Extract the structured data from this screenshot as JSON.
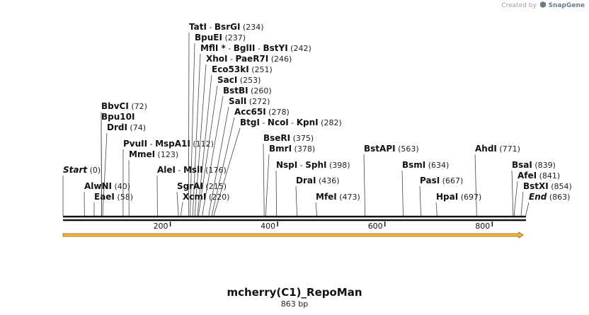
{
  "credit": {
    "prefix": "Created by",
    "brand": "SnapGene"
  },
  "sequence": {
    "name": "mcherry(C1)_RepoMan",
    "length_label": "863 bp",
    "length": 863
  },
  "colors": {
    "backbone": "#111111",
    "feature_fill": "#f5b942",
    "feature_stroke": "#8a5a00",
    "leader": "#444444"
  },
  "ruler": {
    "ticks": [
      200,
      400,
      600,
      800
    ]
  },
  "feature": {
    "start": 1,
    "end": 863,
    "direction": "forward"
  },
  "sites": [
    {
      "row": 0,
      "pos": 0,
      "group": [
        {
          "name": "Start",
          "italic": true
        }
      ],
      "pos_label": "(0)"
    },
    {
      "row": 0,
      "pos": 40,
      "group": [
        {
          "name": "AlwNI"
        }
      ],
      "pos_label": "(40)"
    },
    {
      "row": 1,
      "pos": 58,
      "group": [
        {
          "name": "EaeI"
        }
      ],
      "pos_label": "(58)"
    },
    {
      "row": 0,
      "pos": 72,
      "group": [
        {
          "name": "BbvCI"
        }
      ],
      "pos_label": "(72)"
    },
    {
      "row": 1,
      "pos": 72,
      "group": [
        {
          "name": "Bpu10I"
        }
      ],
      "pos_label": ""
    },
    {
      "row": 2,
      "pos": 74,
      "group": [
        {
          "name": "DrdI"
        }
      ],
      "pos_label": "(74)"
    },
    {
      "row": 0,
      "pos": 112,
      "group": [
        {
          "name": "PvuII"
        },
        {
          "name": "MspA1I"
        }
      ],
      "pos_label": "(112)"
    },
    {
      "row": 1,
      "pos": 123,
      "group": [
        {
          "name": "MmeI"
        }
      ],
      "pos_label": "(123)"
    },
    {
      "row": 0,
      "pos": 176,
      "group": [
        {
          "name": "AleI"
        },
        {
          "name": "MslI"
        }
      ],
      "pos_label": "(176)"
    },
    {
      "row": 0,
      "pos": 215,
      "group": [
        {
          "name": "SgrAI"
        }
      ],
      "pos_label": "(215)"
    },
    {
      "row": 1,
      "pos": 220,
      "group": [
        {
          "name": "XcmI"
        }
      ],
      "pos_label": "(220)"
    },
    {
      "row": 0,
      "pos": 234,
      "group": [
        {
          "name": "TatI"
        },
        {
          "name": "BsrGI"
        }
      ],
      "pos_label": "(234)"
    },
    {
      "row": 1,
      "pos": 237,
      "group": [
        {
          "name": "BpuEI"
        }
      ],
      "pos_label": "(237)"
    },
    {
      "row": 2,
      "pos": 242,
      "group": [
        {
          "name": "MflI *"
        },
        {
          "name": "BglII"
        },
        {
          "name": "BstYI"
        }
      ],
      "pos_label": "(242)"
    },
    {
      "row": 3,
      "pos": 246,
      "group": [
        {
          "name": "XhoI"
        },
        {
          "name": "PaeR7I"
        }
      ],
      "pos_label": "(246)"
    },
    {
      "row": 4,
      "pos": 251,
      "group": [
        {
          "name": "Eco53kI"
        }
      ],
      "pos_label": "(251)"
    },
    {
      "row": 5,
      "pos": 253,
      "group": [
        {
          "name": "SacI"
        }
      ],
      "pos_label": "(253)"
    },
    {
      "row": 6,
      "pos": 260,
      "group": [
        {
          "name": "BstBI"
        }
      ],
      "pos_label": "(260)"
    },
    {
      "row": 7,
      "pos": 272,
      "group": [
        {
          "name": "SalI"
        }
      ],
      "pos_label": "(272)"
    },
    {
      "row": 8,
      "pos": 278,
      "group": [
        {
          "name": "Acc65I"
        }
      ],
      "pos_label": "(278)"
    },
    {
      "row": 9,
      "pos": 282,
      "group": [
        {
          "name": "BtgI"
        },
        {
          "name": "NcoI"
        },
        {
          "name": "KpnI"
        }
      ],
      "pos_label": "(282)"
    },
    {
      "row": 0,
      "pos": 375,
      "group": [
        {
          "name": "BseRI"
        }
      ],
      "pos_label": "(375)"
    },
    {
      "row": 1,
      "pos": 378,
      "group": [
        {
          "name": "BmrI"
        }
      ],
      "pos_label": "(378)"
    },
    {
      "row": 2,
      "pos": 398,
      "group": [
        {
          "name": "NspI"
        },
        {
          "name": "SphI"
        }
      ],
      "pos_label": "(398)"
    },
    {
      "row": 3,
      "pos": 436,
      "group": [
        {
          "name": "DraI"
        }
      ],
      "pos_label": "(436)"
    },
    {
      "row": 4,
      "pos": 473,
      "group": [
        {
          "name": "MfeI"
        }
      ],
      "pos_label": "(473)"
    },
    {
      "row": 0,
      "pos": 563,
      "group": [
        {
          "name": "BstAPI"
        }
      ],
      "pos_label": "(563)"
    },
    {
      "row": 0,
      "pos": 634,
      "group": [
        {
          "name": "BsmI"
        }
      ],
      "pos_label": "(634)"
    },
    {
      "row": 1,
      "pos": 667,
      "group": [
        {
          "name": "PasI"
        }
      ],
      "pos_label": "(667)"
    },
    {
      "row": 2,
      "pos": 697,
      "group": [
        {
          "name": "HpaI"
        }
      ],
      "pos_label": "(697)"
    },
    {
      "row": 0,
      "pos": 771,
      "group": [
        {
          "name": "AhdI"
        }
      ],
      "pos_label": "(771)"
    },
    {
      "row": 0,
      "pos": 839,
      "group": [
        {
          "name": "BsaI"
        }
      ],
      "pos_label": "(839)"
    },
    {
      "row": 1,
      "pos": 841,
      "group": [
        {
          "name": "AfeI"
        }
      ],
      "pos_label": "(841)"
    },
    {
      "row": 2,
      "pos": 854,
      "group": [
        {
          "name": "BstXI"
        }
      ],
      "pos_label": "(854)"
    },
    {
      "row": 3,
      "pos": 863,
      "group": [
        {
          "name": "End",
          "italic": true
        }
      ],
      "pos_label": "(863)"
    }
  ]
}
